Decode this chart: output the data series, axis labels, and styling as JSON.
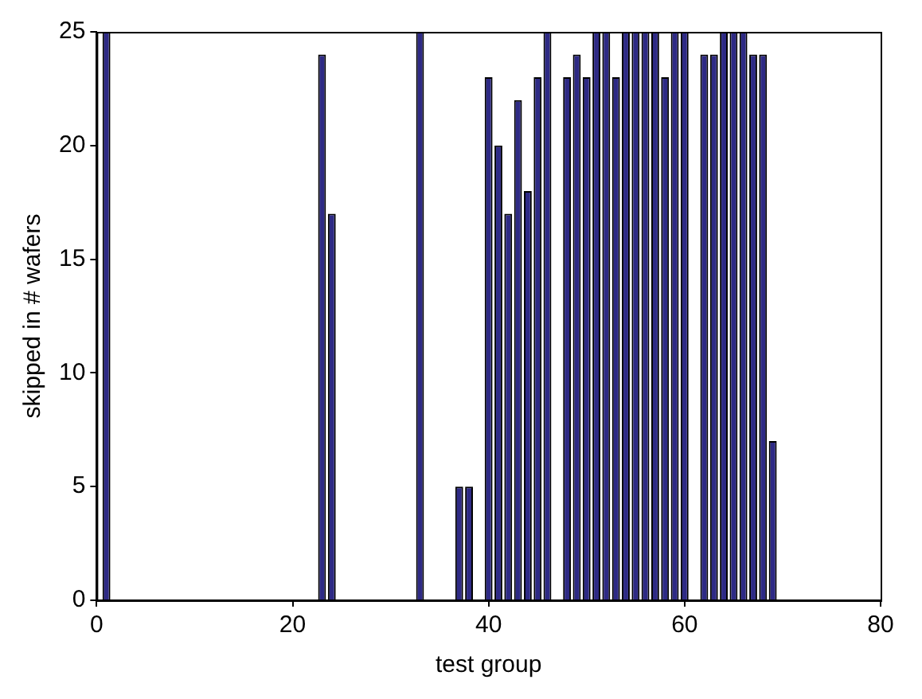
{
  "chart_data": {
    "type": "bar",
    "xlabel": "test group",
    "ylabel": "skipped in # wafers",
    "x": [
      1,
      2,
      3,
      4,
      5,
      6,
      7,
      8,
      9,
      10,
      11,
      12,
      13,
      14,
      15,
      16,
      17,
      18,
      19,
      20,
      21,
      22,
      23,
      24,
      25,
      26,
      27,
      28,
      29,
      30,
      31,
      32,
      33,
      34,
      35,
      36,
      37,
      38,
      39,
      40,
      41,
      42,
      43,
      44,
      45,
      46,
      47,
      48,
      49,
      50,
      51,
      52,
      53,
      54,
      55,
      56,
      57,
      58,
      59,
      60,
      61,
      62,
      63,
      64,
      65,
      66,
      67,
      68,
      69,
      70
    ],
    "values": [
      25,
      0,
      0,
      0,
      0,
      0,
      0,
      0,
      0,
      0,
      0,
      0,
      0,
      0,
      0,
      0,
      0,
      0,
      0,
      0,
      0,
      0,
      24,
      17,
      0,
      0,
      0,
      0,
      0,
      0,
      0,
      0,
      25,
      0,
      0,
      0,
      5,
      5,
      0,
      23,
      20,
      17,
      22,
      18,
      23,
      25,
      0,
      23,
      24,
      23,
      25,
      25,
      23,
      25,
      25,
      25,
      25,
      23,
      25,
      25,
      0,
      24,
      24,
      25,
      25,
      25,
      24,
      24,
      7,
      0
    ],
    "color": "#2e2a85",
    "xlim": [
      0,
      80
    ],
    "xticks": [
      0,
      20,
      40,
      60,
      80
    ],
    "ylim": [
      0,
      25
    ],
    "yticks": [
      0,
      5,
      10,
      15,
      20,
      25
    ],
    "grid": false,
    "legend": false
  }
}
